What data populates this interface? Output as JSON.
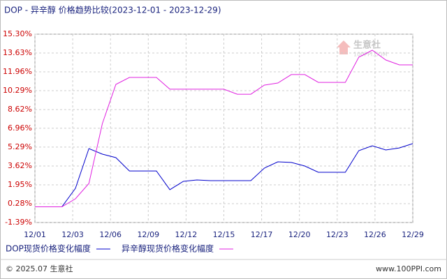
{
  "chart_data": {
    "type": "line",
    "title": "DOP - 异辛醇 价格趋势比较(2023-12-01 - 2023-12-29)",
    "x": [
      0,
      1,
      2,
      3,
      4,
      5,
      6,
      7,
      8,
      9,
      10,
      11,
      12,
      13,
      14,
      15,
      16,
      17,
      18,
      19,
      20,
      21,
      22,
      23,
      24,
      25,
      26,
      27,
      28
    ],
    "xlim": [
      0,
      28
    ],
    "xticks": [
      {
        "value": 0,
        "label": "12/01"
      },
      {
        "value": 2.8,
        "label": "12/03"
      },
      {
        "value": 5.6,
        "label": "12/06"
      },
      {
        "value": 8.4,
        "label": "12/09"
      },
      {
        "value": 11.2,
        "label": "12/12"
      },
      {
        "value": 14,
        "label": "12/15"
      },
      {
        "value": 16.8,
        "label": "12/17"
      },
      {
        "value": 19.6,
        "label": "12/20"
      },
      {
        "value": 22.4,
        "label": "12/23"
      },
      {
        "value": 25.2,
        "label": "12/26"
      },
      {
        "value": 28,
        "label": "12/29"
      }
    ],
    "ylim": [
      -1.39,
      15.3
    ],
    "yticks": [
      {
        "value": -1.39,
        "label": "-1.39%"
      },
      {
        "value": 0.28,
        "label": "0.28%"
      },
      {
        "value": 1.95,
        "label": "1.95%"
      },
      {
        "value": 3.62,
        "label": "3.62%"
      },
      {
        "value": 5.29,
        "label": "5.29%"
      },
      {
        "value": 6.96,
        "label": "6.96%"
      },
      {
        "value": 8.62,
        "label": "8.62%"
      },
      {
        "value": 10.29,
        "label": "10.29%"
      },
      {
        "value": 11.96,
        "label": "11.96%"
      },
      {
        "value": 13.63,
        "label": "13.63%"
      },
      {
        "value": 15.3,
        "label": "15.30%"
      }
    ],
    "grid": true,
    "legend": "bottom",
    "series": [
      {
        "name": "DOP现货价格变化幅度",
        "color": "#0000cc",
        "values": [
          0,
          0,
          0,
          1.64,
          5.16,
          4.67,
          4.36,
          3.18,
          3.18,
          3.18,
          1.52,
          2.26,
          2.38,
          2.32,
          2.32,
          2.32,
          2.32,
          3.43,
          3.99,
          3.93,
          3.62,
          3.06,
          3.06,
          3.06,
          4.98,
          5.41,
          5.04,
          5.22,
          5.6
        ]
      },
      {
        "name": "异辛醇现货价格变化幅度",
        "color": "#e020e0",
        "values": [
          0,
          0,
          0,
          0.71,
          2.07,
          7.39,
          10.85,
          11.47,
          11.47,
          11.47,
          10.42,
          10.42,
          10.42,
          10.42,
          10.42,
          9.98,
          9.98,
          10.79,
          10.97,
          11.72,
          11.72,
          11.03,
          11.03,
          11.03,
          13.26,
          13.88,
          13.01,
          12.58,
          12.58
        ]
      }
    ],
    "watermark": {
      "name": "生意社",
      "url": "100PPI.COM"
    },
    "footer": {
      "left": "© 2025.07 生意社",
      "right": "www.100PPI.com"
    }
  }
}
